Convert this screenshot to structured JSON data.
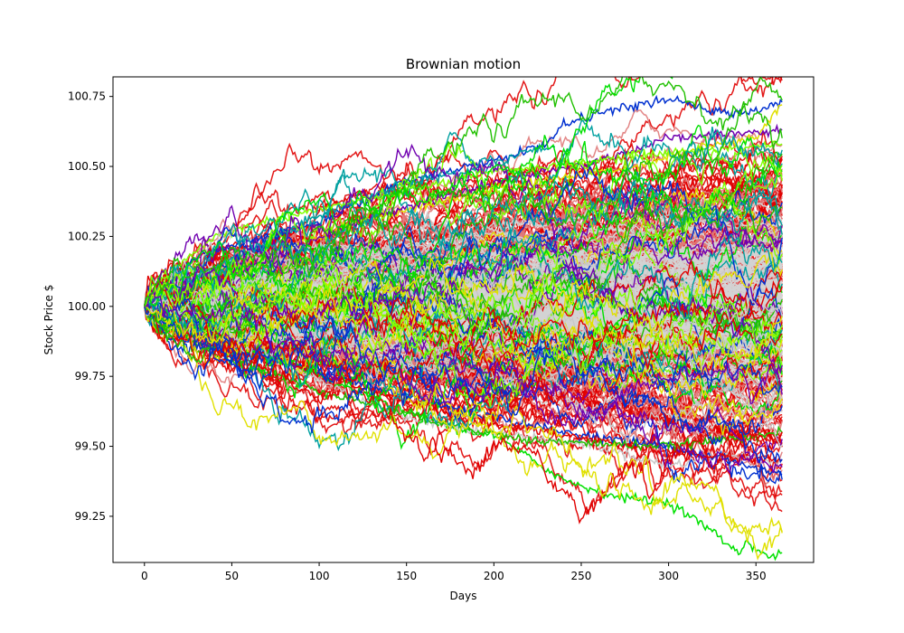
{
  "chart_data": {
    "type": "line",
    "title": "Brownian motion",
    "xlabel": "Days",
    "ylabel": "Stock Price $",
    "xlim": [
      -18,
      383
    ],
    "ylim": [
      99.085,
      100.82
    ],
    "x_ticks": [
      0,
      50,
      100,
      150,
      200,
      250,
      300,
      350
    ],
    "y_ticks": [
      99.25,
      99.5,
      99.75,
      100.0,
      100.25,
      100.5,
      100.75
    ],
    "x_tick_labels": [
      "0",
      "50",
      "100",
      "150",
      "200",
      "250",
      "300",
      "350"
    ],
    "y_tick_labels": [
      "99.25",
      "99.50",
      "99.75",
      "100.00",
      "100.25",
      "100.50",
      "100.75"
    ],
    "n_days": 365,
    "start_price": 100.0,
    "grid": false,
    "legend": "none",
    "colors": {
      "core": "#d3d3d3",
      "inner_band": "#e07a7a",
      "outer_band": "#e00000",
      "extremes": [
        "#0030d0",
        "#00a0a0",
        "#00e000",
        "#e0e000",
        "#7000b0",
        "#80ff00",
        "#20c000",
        "#e00000",
        "#c8c8c8"
      ]
    },
    "series": [
      {
        "color": "#0030d0",
        "values": [
          [
            0,
            100.0
          ],
          [
            30,
            100.18
          ],
          [
            60,
            100.23
          ],
          [
            100,
            100.3
          ],
          [
            150,
            100.45
          ],
          [
            200,
            100.52
          ],
          [
            230,
            100.58
          ],
          [
            240,
            100.65
          ],
          [
            260,
            100.69
          ],
          [
            300,
            100.74
          ],
          [
            330,
            100.69
          ],
          [
            350,
            100.7
          ],
          [
            365,
            100.73
          ]
        ]
      },
      {
        "color": "#00a0a0",
        "values": [
          [
            0,
            100.0
          ],
          [
            50,
            100.17
          ],
          [
            100,
            100.33
          ],
          [
            150,
            100.44
          ],
          [
            200,
            100.5
          ],
          [
            220,
            100.56
          ],
          [
            235,
            100.57
          ]
        ]
      },
      {
        "color": "#e0e000",
        "values": [
          [
            0,
            100.0
          ],
          [
            60,
            100.15
          ],
          [
            120,
            100.3
          ],
          [
            200,
            100.42
          ],
          [
            280,
            100.5
          ],
          [
            320,
            100.57
          ],
          [
            350,
            100.6
          ],
          [
            365,
            100.72
          ]
        ]
      },
      {
        "color": "#7000b0",
        "values": [
          [
            0,
            100.0
          ],
          [
            60,
            100.14
          ],
          [
            130,
            100.32
          ],
          [
            200,
            100.44
          ],
          [
            260,
            100.52
          ],
          [
            300,
            100.6
          ],
          [
            365,
            100.63
          ]
        ]
      },
      {
        "color": "#00e000",
        "values": [
          [
            0,
            100.0
          ],
          [
            50,
            99.88
          ],
          [
            100,
            99.75
          ],
          [
            150,
            99.62
          ],
          [
            180,
            99.56
          ],
          [
            200,
            99.54
          ],
          [
            210,
            99.5
          ],
          [
            240,
            99.38
          ],
          [
            270,
            99.32
          ],
          [
            300,
            99.3
          ],
          [
            320,
            99.22
          ],
          [
            340,
            99.12
          ],
          [
            345,
            99.16
          ],
          [
            358,
            99.1
          ],
          [
            365,
            99.12
          ]
        ]
      },
      {
        "color": "#c8c8c8",
        "values": [
          [
            0,
            100.0
          ],
          [
            60,
            99.85
          ],
          [
            120,
            99.68
          ],
          [
            150,
            99.6
          ],
          [
            200,
            99.55
          ],
          [
            260,
            99.5
          ],
          [
            300,
            99.43
          ],
          [
            330,
            99.47
          ],
          [
            365,
            99.45
          ]
        ]
      },
      {
        "color": "#0030d0",
        "values": [
          [
            0,
            100.0
          ],
          [
            80,
            99.8
          ],
          [
            160,
            99.66
          ],
          [
            240,
            99.55
          ],
          [
            300,
            99.5
          ],
          [
            365,
            99.4
          ]
        ]
      },
      {
        "color": "#e00000",
        "values": [
          [
            0,
            100.0
          ],
          [
            90,
            99.78
          ],
          [
            180,
            99.6
          ],
          [
            260,
            99.52
          ],
          [
            320,
            99.46
          ],
          [
            365,
            99.45
          ]
        ]
      },
      {
        "color": "#80ff00",
        "values": [
          [
            0,
            100.0
          ],
          [
            20,
            100.15
          ],
          [
            40,
            100.25
          ],
          [
            80,
            100.32
          ],
          [
            140,
            100.4
          ],
          [
            200,
            100.48
          ],
          [
            300,
            100.55
          ],
          [
            365,
            100.58
          ]
        ]
      },
      {
        "color": "#20c000",
        "values": [
          [
            0,
            100.0
          ],
          [
            40,
            99.83
          ],
          [
            100,
            99.7
          ],
          [
            160,
            99.6
          ],
          [
            220,
            99.52
          ],
          [
            300,
            99.5
          ],
          [
            365,
            99.55
          ]
        ]
      }
    ]
  }
}
